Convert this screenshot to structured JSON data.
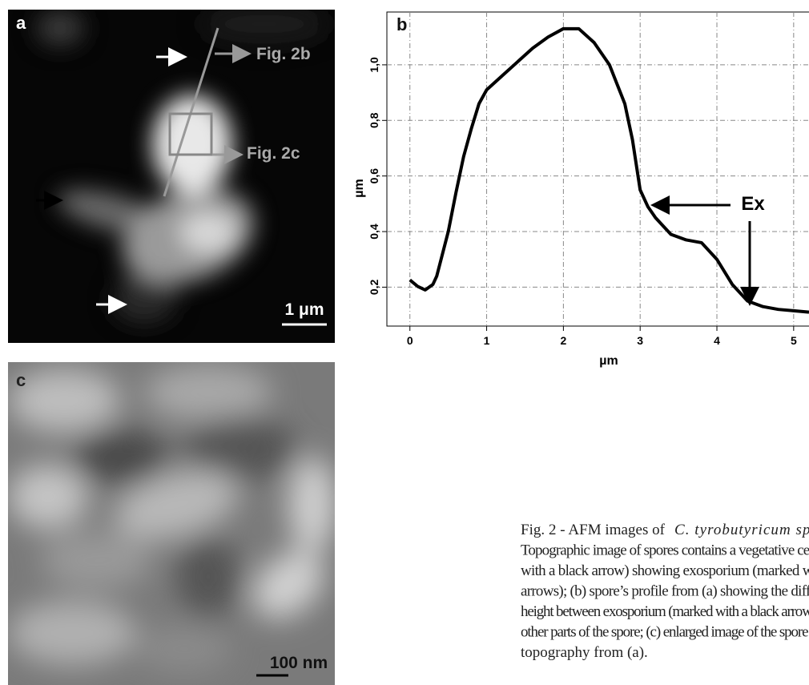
{
  "panel_a": {
    "label": "a",
    "annotations": [
      "Fig. 2b",
      "Fig. 2c"
    ],
    "scale": "1 μm"
  },
  "panel_c": {
    "label": "c",
    "scale": "100 nm"
  },
  "chart_data": {
    "type": "line",
    "panel_label": "b",
    "xlabel": "µm",
    "ylabel": "µm",
    "x": [
      0,
      0.1,
      0.2,
      0.3,
      0.35,
      0.5,
      0.6,
      0.7,
      0.8,
      0.9,
      1.0,
      1.2,
      1.4,
      1.6,
      1.8,
      2.0,
      2.2,
      2.4,
      2.6,
      2.8,
      2.9,
      3.0,
      3.1,
      3.2,
      3.4,
      3.6,
      3.8,
      4.0,
      4.2,
      4.4,
      4.6,
      4.8,
      5.0,
      5.2
    ],
    "values": [
      0.226,
      0.203,
      0.19,
      0.21,
      0.24,
      0.4,
      0.54,
      0.67,
      0.77,
      0.86,
      0.91,
      0.96,
      1.01,
      1.06,
      1.1,
      1.13,
      1.13,
      1.08,
      1.0,
      0.86,
      0.73,
      0.55,
      0.49,
      0.45,
      0.39,
      0.37,
      0.36,
      0.3,
      0.21,
      0.15,
      0.13,
      0.12,
      0.115,
      0.11
    ],
    "color": "#000000",
    "xlim": [
      -0.3,
      5.2
    ],
    "xticks": [
      0,
      1,
      2,
      3,
      4,
      5
    ],
    "ylim": [
      0.06,
      1.19
    ],
    "yticks": [
      {
        "value": 0.2,
        "label": "0,2"
      },
      {
        "value": 0.4,
        "label": "0,4"
      },
      {
        "value": 0.6,
        "label": "0,6"
      },
      {
        "value": 0.8,
        "label": "0,8"
      },
      {
        "value": 1.0,
        "label": "1,0"
      }
    ],
    "grid": true,
    "annotation": "Ex"
  },
  "caption": {
    "lines": [
      "Fig. 2 - AFM images of ",
      "Topographic image of spores contains a vegetative cell ",
      "with a black arrow) showing exosporium (marked wi",
      "arrows); (b) spore’s profile from (a) showing  the diffe",
      "height between exosporium (marked with a black arrow)",
      "other parts of the spore; (c) enlarged image of the spore’s",
      "topography from (a)."
    ],
    "italic": "C. tyrobutyricum spo"
  }
}
